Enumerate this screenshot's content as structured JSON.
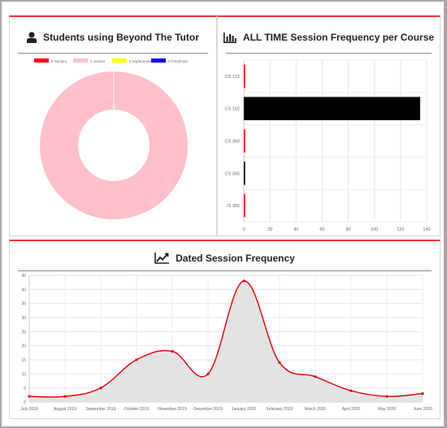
{
  "panels": {
    "students": {
      "title": "Students using Beyond The Tutor",
      "icon": "user-icon"
    },
    "courses": {
      "title": "ALL TIME Session Frequency per Course",
      "icon": "bar-chart-icon"
    },
    "dated": {
      "title": "Dated Session Frequency",
      "icon": "line-chart-icon"
    }
  },
  "chart_data": [
    {
      "type": "pie",
      "variant": "doughnut",
      "legend_position": "top",
      "labels": [
        "0 Seniors",
        "1 Juniors",
        "0 Sophomores",
        "0 Freshmen"
      ],
      "values": [
        0,
        1,
        0,
        0
      ],
      "colors": [
        "#ff0000",
        "#ffc0cb",
        "#ffff00",
        "#0000ff"
      ]
    },
    {
      "type": "bar",
      "orientation": "horizontal",
      "categories": [
        "CS 122",
        "CS 162",
        "CS 360",
        "CS 365",
        "IS 355"
      ],
      "values": [
        1,
        135,
        1,
        1,
        1
      ],
      "colors": [
        "#ff0000",
        "#000000",
        "#ff0000",
        "#000000",
        "#ff0000"
      ],
      "xlim": [
        0,
        140
      ],
      "xticks": [
        0,
        20,
        40,
        60,
        80,
        100,
        120,
        140
      ],
      "grid": true
    },
    {
      "type": "area",
      "categories": [
        "July 2019",
        "August 2019",
        "September 2019",
        "October 2019",
        "November 2019",
        "December 2019",
        "January 2020",
        "February 2020",
        "March 2020",
        "April 2020",
        "May 2020",
        "June 2020"
      ],
      "values": [
        2,
        2,
        5,
        15,
        18,
        10,
        43,
        14,
        9,
        4,
        2,
        3
      ],
      "ylim": [
        0,
        45
      ],
      "yticks": [
        0,
        5,
        10,
        15,
        20,
        25,
        30,
        35,
        40,
        45
      ],
      "line_color": "#e00000",
      "fill_color": "#e3e3e3",
      "grid": true
    }
  ]
}
